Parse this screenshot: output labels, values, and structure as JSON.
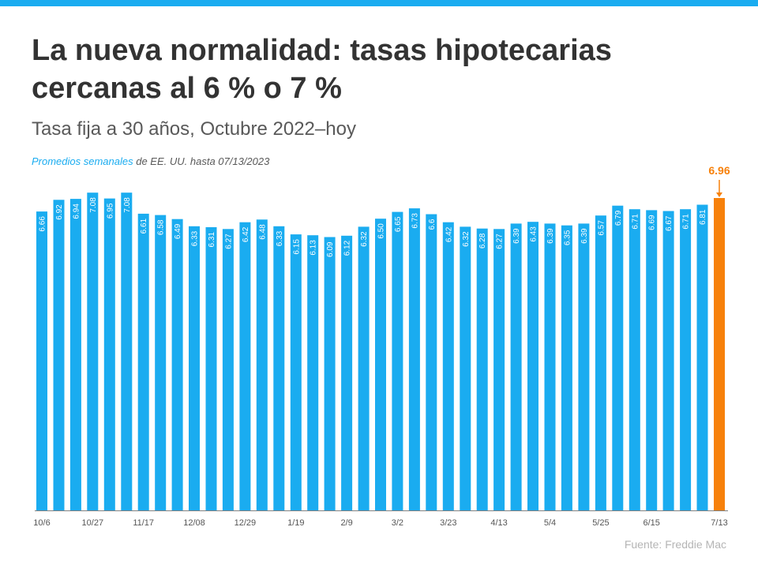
{
  "title_line1": "La nueva normalidad: tasas hipotecarias",
  "title_line2": "cercanas al 6 % o 7 %",
  "subtitle": "Tasa fija a 30 años, Octubre 2022–hoy",
  "note_highlight": "Promedios semanales",
  "note_rest": " de EE. UU. hasta 07/13/2023",
  "source": "Fuente:  Freddie Mac",
  "colors": {
    "bar": "#1aacf0",
    "highlight": "#f7810b",
    "axis": "#808080"
  },
  "chart_data": {
    "type": "bar",
    "title": "La nueva normalidad: tasas hipotecarias cercanas al 6 % o 7 %",
    "xlabel": "",
    "ylabel": "",
    "ylim": [
      0,
      7.5
    ],
    "values": [
      6.66,
      6.92,
      6.94,
      7.08,
      6.95,
      7.08,
      6.61,
      6.58,
      6.49,
      6.33,
      6.31,
      6.27,
      6.42,
      6.48,
      6.33,
      6.15,
      6.13,
      6.09,
      6.12,
      6.32,
      6.5,
      6.65,
      6.73,
      6.6,
      6.42,
      6.32,
      6.28,
      6.27,
      6.39,
      6.43,
      6.39,
      6.35,
      6.39,
      6.57,
      6.79,
      6.71,
      6.69,
      6.67,
      6.71,
      6.81,
      6.96
    ],
    "value_labels": [
      "6.66",
      "6.92",
      "6.94",
      "7.08",
      "6.95",
      "7.08",
      "6.61",
      "6.58",
      "6.49",
      "6.33",
      "6.31",
      "6.27",
      "6.42",
      "6.48",
      "6.33",
      "6.15",
      "6.13",
      "6.09",
      "6.12",
      "6.32",
      "6.50",
      "6.65",
      "6.73",
      "6.6",
      "6.42",
      "6.32",
      "6.28",
      "6.27",
      "6.39",
      "6.43",
      "6.39",
      "6.35",
      "6.39",
      "6.57",
      "6.79",
      "6.71",
      "6.69",
      "6.67",
      "6.71",
      "6.81",
      "6.96"
    ],
    "ticks": [
      {
        "index": 0,
        "label": "10/6"
      },
      {
        "index": 3,
        "label": "10/27"
      },
      {
        "index": 6,
        "label": "11/17"
      },
      {
        "index": 9,
        "label": "12/08"
      },
      {
        "index": 12,
        "label": "12/29"
      },
      {
        "index": 15,
        "label": "1/19"
      },
      {
        "index": 18,
        "label": "2/9"
      },
      {
        "index": 21,
        "label": "3/2"
      },
      {
        "index": 24,
        "label": "3/23"
      },
      {
        "index": 27,
        "label": "4/13"
      },
      {
        "index": 30,
        "label": "5/4"
      },
      {
        "index": 33,
        "label": "5/25"
      },
      {
        "index": 36,
        "label": "6/15"
      },
      {
        "index": 40,
        "label": "7/13"
      }
    ],
    "highlight_index": 40,
    "highlight_label": "6.96",
    "show_inside_labels_up_to": 39
  }
}
